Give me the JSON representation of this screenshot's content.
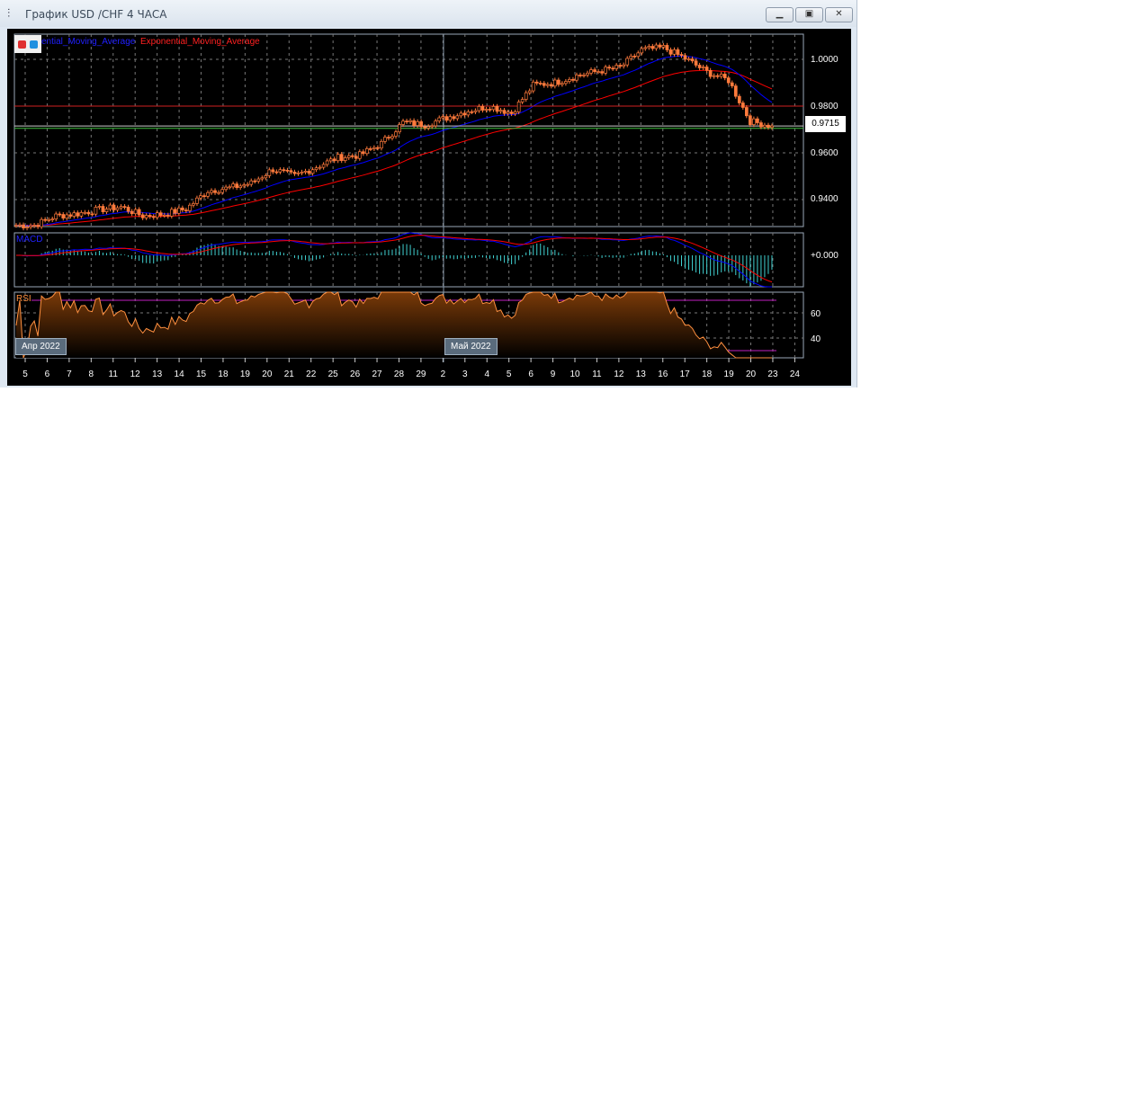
{
  "window": {
    "title": "График USD /CHF  4 ЧАСА",
    "icon": "candlestick-chart-icon",
    "buttons": [
      "minimize",
      "restore",
      "close"
    ]
  },
  "legend": {
    "ma1": "ential_Moving_Average",
    "ma2": "Exponential_Moving_Average",
    "colors": {
      "ma1": "#0000ff",
      "ma2": "#ff0000"
    }
  },
  "price_axis": {
    "labels": [
      "1.0000",
      "0.9800",
      "0.9600",
      "0.9400"
    ],
    "current": "0.9715"
  },
  "panes": {
    "macd_label": "MACD",
    "macd_zero": "+0.000",
    "rsi_label": "RSI",
    "rsi_labels": [
      "60",
      "40"
    ]
  },
  "months": [
    "Апр 2022",
    "Май 2022"
  ],
  "x_labels": [
    "5",
    "6",
    "7",
    "8",
    "11",
    "12",
    "13",
    "14",
    "15",
    "18",
    "19",
    "20",
    "21",
    "22",
    "25",
    "26",
    "27",
    "28",
    "29",
    "2",
    "3",
    "4",
    "5",
    "6",
    "9",
    "10",
    "11",
    "12",
    "13",
    "16",
    "17",
    "18",
    "19",
    "20",
    "23",
    "24"
  ],
  "chart_data": {
    "type": "candlestick",
    "timeframe": "4 ЧАСА",
    "symbol": "USD /CHF",
    "days": [
      "5",
      "6",
      "7",
      "8",
      "11",
      "12",
      "13",
      "14",
      "15",
      "18",
      "19",
      "20",
      "21",
      "22",
      "25",
      "26",
      "27",
      "28",
      "29",
      "2",
      "3",
      "4",
      "5",
      "6",
      "9",
      "10",
      "11",
      "12",
      "13",
      "16",
      "17",
      "18",
      "19",
      "20",
      "23"
    ],
    "daily_close": [
      0.929,
      0.933,
      0.934,
      0.9357,
      0.9369,
      0.933,
      0.9338,
      0.936,
      0.9438,
      0.945,
      0.947,
      0.953,
      0.95,
      0.954,
      0.958,
      0.959,
      0.964,
      0.973,
      0.972,
      0.975,
      0.978,
      0.98,
      0.977,
      0.989,
      0.99,
      0.993,
      0.995,
      0.9965,
      1.004,
      1.005,
      1.0004,
      0.9946,
      0.991,
      0.9735,
      0.9715
    ],
    "ylim": [
      0.928,
      1.008
    ],
    "hlines": [
      {
        "value": 0.98,
        "color": "#d02020"
      },
      {
        "value": 0.9705,
        "color": "#40c040"
      },
      {
        "value": 0.9715,
        "color": "#cccccc"
      }
    ],
    "colors": {
      "candle": "#ff7a3c",
      "ema_fast": "#0000ff",
      "ema_slow": "#ff0000",
      "macd_hist": "#40d0d0",
      "rsi": "#ff9040",
      "rsi_levels": "#c020c0"
    },
    "rsi_levels": [
      70,
      30
    ]
  }
}
